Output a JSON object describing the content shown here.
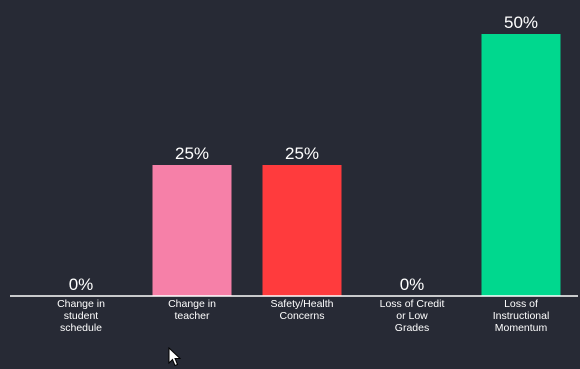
{
  "chart_data": {
    "type": "bar",
    "categories": [
      [
        "Change in",
        "student",
        "schedule"
      ],
      [
        "Change in",
        "teacher"
      ],
      [
        "Safety/Health",
        "Concerns"
      ],
      [
        "Loss of Credit",
        "or Low",
        "Grades"
      ],
      [
        "Loss of",
        "Instructional",
        "Momentum"
      ]
    ],
    "values": [
      0,
      25,
      25,
      0,
      50
    ],
    "value_labels": [
      "0%",
      "25%",
      "25%",
      "0%",
      "50%"
    ],
    "colors": [
      "#f680a8",
      "#f680a8",
      "#ff3b3d",
      "#f680a8",
      "#00d88e"
    ],
    "ylim": [
      0,
      50
    ],
    "grid": false,
    "legend": "none"
  },
  "cursor": {
    "icon": "mouse-pointer-icon"
  }
}
